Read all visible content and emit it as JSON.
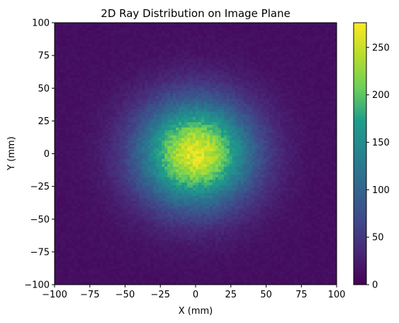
{
  "chart_data": {
    "type": "heatmap",
    "title": "2D Ray Distribution on Image Plane",
    "xlabel": "X (mm)",
    "ylabel": "Y (mm)",
    "xlim": [
      -100,
      100
    ],
    "ylim": [
      -100,
      100
    ],
    "x_ticks": [
      "−100",
      "−75",
      "−50",
      "−25",
      "0",
      "25",
      "50",
      "75",
      "100"
    ],
    "y_ticks": [
      "−100",
      "−75",
      "−50",
      "−25",
      "0",
      "25",
      "50",
      "75",
      "100"
    ],
    "x_tick_values": [
      -100,
      -75,
      -50,
      -25,
      0,
      25,
      50,
      75,
      100
    ],
    "y_tick_values": [
      -100,
      -75,
      -50,
      -25,
      0,
      25,
      50,
      75,
      100
    ],
    "colorbar": {
      "range": [
        0,
        276
      ],
      "ticks": [
        "0",
        "50",
        "100",
        "150",
        "200",
        "250"
      ],
      "tick_values": [
        0,
        50,
        100,
        150,
        200,
        250
      ],
      "colormap": "viridis"
    },
    "distribution": {
      "shape": "2D Gaussian",
      "center": [
        0,
        0
      ],
      "sigma_mm": 28,
      "peak_count": 260,
      "background_count": 12,
      "bins_per_axis": 100
    },
    "grid": false
  }
}
